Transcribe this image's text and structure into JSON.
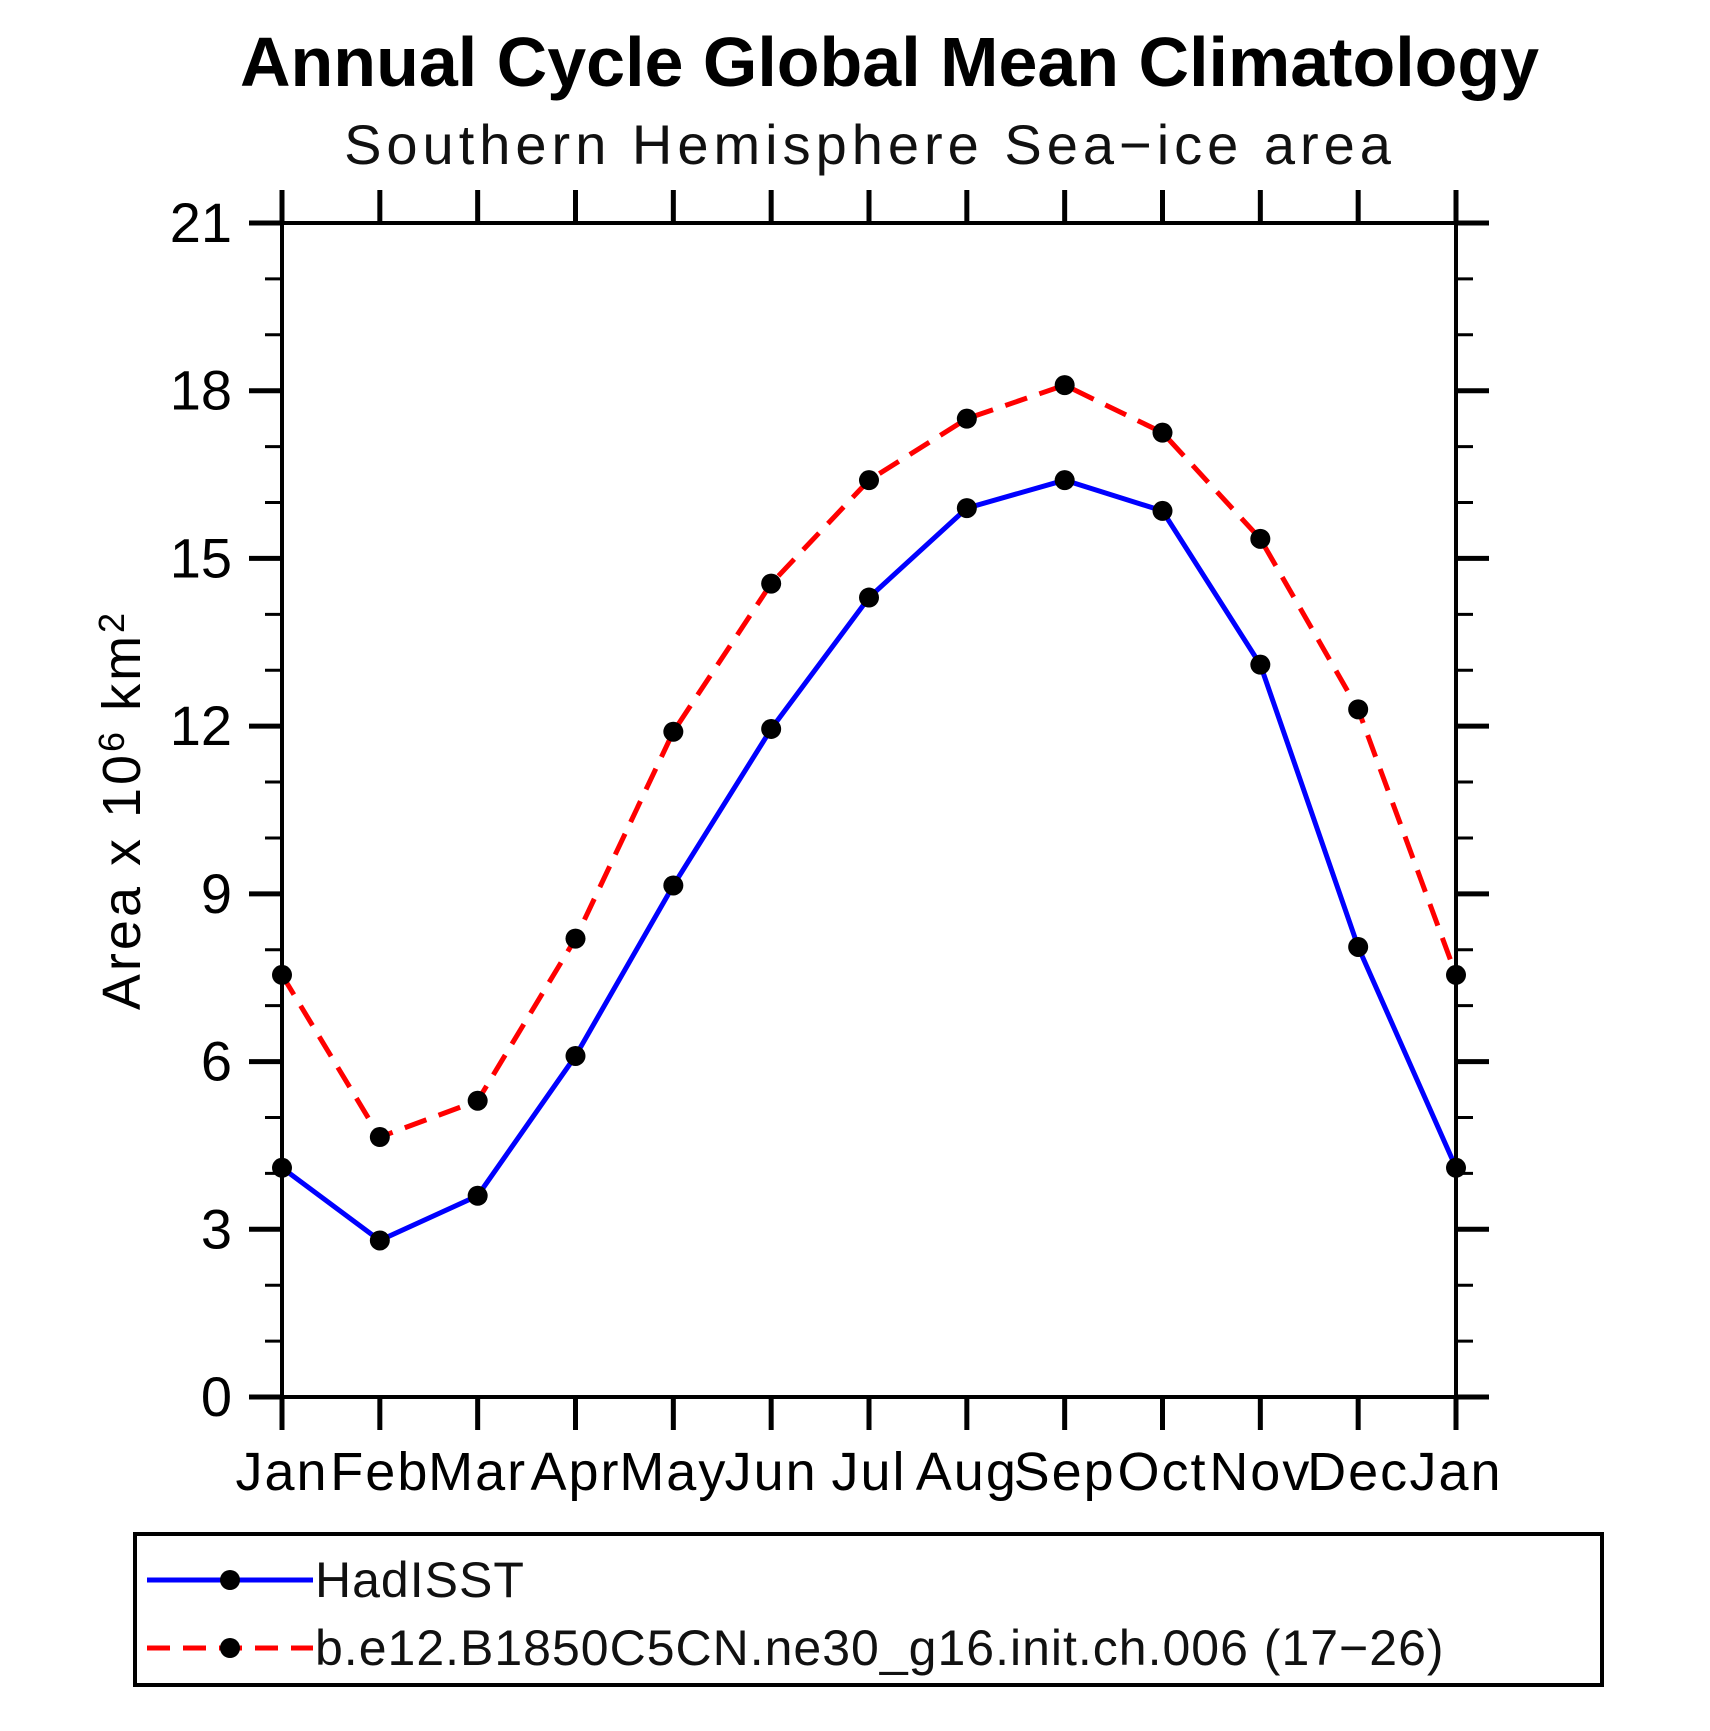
{
  "title": "Annual Cycle Global Mean Climatology",
  "subtitle": "Southern Hemisphere Sea−ice area",
  "chart_data": {
    "type": "line",
    "categories": [
      "Jan",
      "Feb",
      "Mar",
      "Apr",
      "May",
      "Jun",
      "Jul",
      "Aug",
      "Sep",
      "Oct",
      "Nov",
      "Dec",
      "Jan"
    ],
    "series": [
      {
        "name": "HadISST",
        "color": "#0000ff",
        "line_style": "solid",
        "marker": "filled-circle",
        "marker_color": "#000000",
        "values": [
          4.1,
          2.8,
          3.6,
          6.1,
          9.15,
          11.95,
          14.3,
          15.9,
          16.4,
          15.85,
          13.1,
          8.05,
          4.1
        ]
      },
      {
        "name": "b.e12.B1850C5CN.ne30_g16.init.ch.006 (17−26)",
        "color": "#ff0000",
        "line_style": "dashed",
        "marker": "filled-circle",
        "marker_color": "#000000",
        "values": [
          7.55,
          4.65,
          5.3,
          8.2,
          11.9,
          14.55,
          16.4,
          17.5,
          18.1,
          17.25,
          15.35,
          12.3,
          7.55
        ]
      }
    ],
    "xlabel": "",
    "ylabel": "Area x 10⁶ km²",
    "ylabel_parts": [
      {
        "t": "Area x 10",
        "sup": false
      },
      {
        "t": "6",
        "sup": true
      },
      {
        "t": " km",
        "sup": false
      },
      {
        "t": "2",
        "sup": true
      }
    ],
    "ylim": [
      0,
      21
    ],
    "yticks_major": [
      0,
      3,
      6,
      9,
      12,
      15,
      18,
      21
    ],
    "ytick_minor_step": 1,
    "grid": false,
    "frame": "box-with-outward-ticks",
    "legend_position": "bottom-left-box",
    "axis_color": "#000000",
    "background_color": "#ffffff"
  }
}
